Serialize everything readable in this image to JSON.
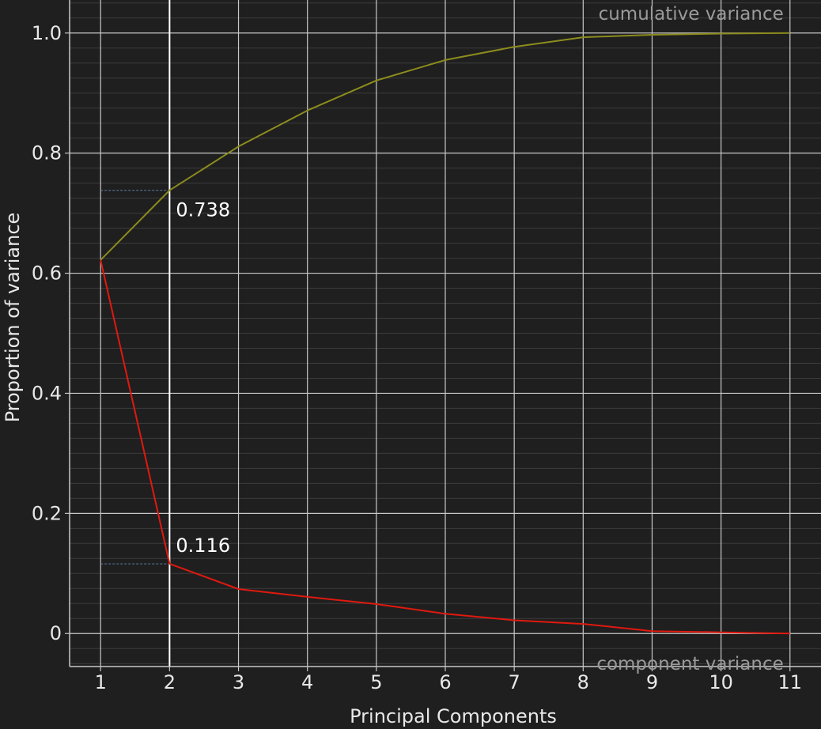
{
  "chart_data": {
    "type": "line",
    "title": "",
    "xlabel": "Principal Components",
    "ylabel": "Proportion of variance",
    "x": [
      1,
      2,
      3,
      4,
      5,
      6,
      7,
      8,
      9,
      10,
      11
    ],
    "xlim": [
      0.55,
      11.45
    ],
    "ylim": [
      -0.055,
      1.055
    ],
    "xticks": [
      "1",
      "2",
      "3",
      "4",
      "5",
      "6",
      "7",
      "8",
      "9",
      "10",
      "11"
    ],
    "yticks": [
      {
        "value": 0,
        "label": "0"
      },
      {
        "value": 0.2,
        "label": "0.2"
      },
      {
        "value": 0.4,
        "label": "0.4"
      },
      {
        "value": 0.6,
        "label": "0.6"
      },
      {
        "value": 0.8,
        "label": "0.8"
      },
      {
        "value": 1.0,
        "label": "1.0"
      }
    ],
    "grid": true,
    "series": [
      {
        "name": "cumulative variance",
        "color": "#8c8c1e",
        "values": [
          0.622,
          0.738,
          0.811,
          0.871,
          0.921,
          0.955,
          0.977,
          0.993,
          0.997,
          0.999,
          1.0
        ]
      },
      {
        "name": "component variance",
        "color": "#e0190f",
        "values": [
          0.622,
          0.116,
          0.074,
          0.061,
          0.049,
          0.033,
          0.022,
          0.016,
          0.004,
          0.002,
          0.0
        ]
      }
    ],
    "annotations": [
      {
        "text": "0.738",
        "x": 2,
        "y": 0.738
      },
      {
        "text": "0.116",
        "x": 2,
        "y": 0.116
      }
    ],
    "highlight_x": 2,
    "colors": {
      "background": "#1f1f1f",
      "grid_major": "#c8c8c8",
      "grid_minor": "#3c3c3c",
      "highlight": "#ffffff",
      "guide": "#5f7fa8"
    }
  }
}
